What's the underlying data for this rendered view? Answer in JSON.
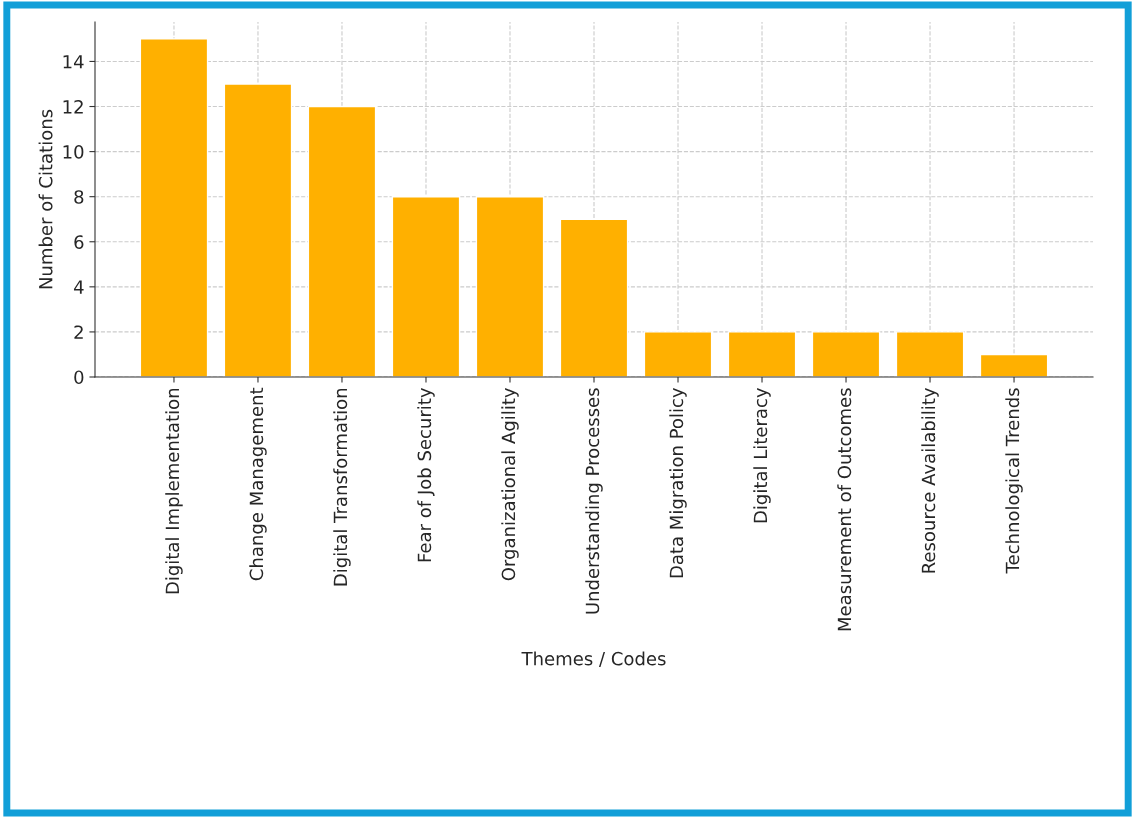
{
  "chart_data": {
    "type": "bar",
    "xlabel": "Themes / Codes",
    "ylabel": "Number of Citations",
    "categories": [
      "Digital Implementation",
      "Change Management",
      "Digital Transformation",
      "Fear of Job Security",
      "Organizational Agility",
      "Understanding Processes",
      "Data Migration Policy",
      "Digital Literacy",
      "Measurement of Outcomes",
      "Resource Availability",
      "Technological Trends"
    ],
    "values": [
      15,
      13,
      12,
      8,
      8,
      7,
      2,
      2,
      2,
      2,
      1
    ],
    "color": "#ffb000",
    "ylim": [
      0,
      15.75
    ],
    "yticks": [
      0,
      2,
      4,
      6,
      8,
      10,
      12,
      14
    ],
    "grid": true
  }
}
